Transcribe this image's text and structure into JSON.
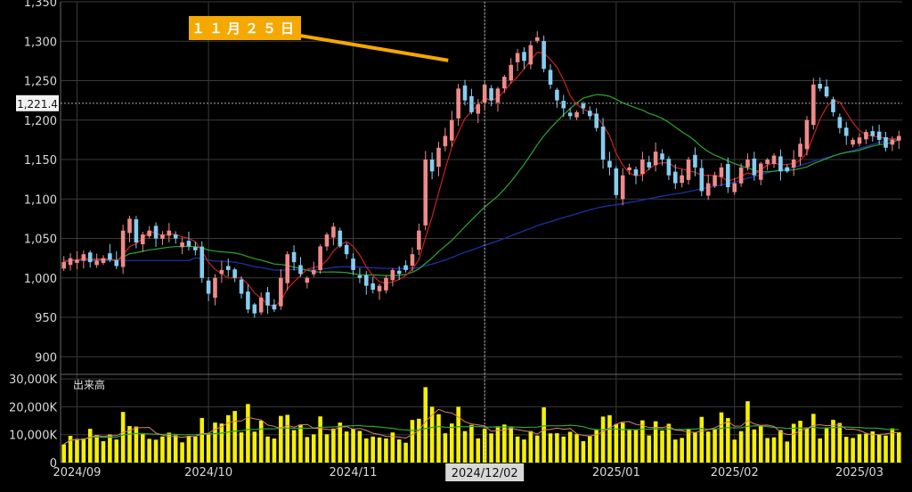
{
  "chart_data": {
    "type": "candlestick",
    "price_axis": {
      "ylim": [
        880,
        1350
      ],
      "ticks": [
        900,
        950,
        1000,
        1050,
        1100,
        1150,
        1200,
        1250,
        1300,
        1350
      ],
      "tick_labels": [
        "900",
        "950",
        "1,000",
        "1,050",
        "1,100",
        "1,150",
        "1,200",
        "1,250",
        "1,300",
        "1,350"
      ]
    },
    "volume_axis": {
      "ylim": [
        0,
        31000
      ],
      "ticks": [
        0,
        10000,
        20000,
        30000
      ],
      "tick_labels": [
        "0",
        "10,000K",
        "20,000K",
        "30,000K"
      ],
      "title": "出来高"
    },
    "x_labels": [
      {
        "index": 2,
        "label": "2024/09"
      },
      {
        "index": 22,
        "label": "2024/10"
      },
      {
        "index": 44,
        "label": "2024/11"
      },
      {
        "index": 64,
        "label": "2024/12"
      },
      {
        "index": 84,
        "label": "2025/01"
      },
      {
        "index": 102,
        "label": "2025/02"
      },
      {
        "index": 121,
        "label": "2025/03"
      }
    ],
    "cursor": {
      "index": 64,
      "date_label": "2024/12/02",
      "price_label": "1,221.4",
      "price": 1221.4
    },
    "annotation": {
      "text": "１１月２５日",
      "target_index": 59,
      "target_price": 1278
    },
    "colors": {
      "up": "#f08a8a",
      "down": "#87cdf0",
      "volume": "#f4f000",
      "ma_short": "#cc2020",
      "ma_mid": "#2ea52e",
      "ma_long": "#1c2e9a",
      "grid": "#3a3a3a",
      "callout": "#f5a800"
    },
    "close": [
      1020,
      1025,
      1023,
      1030,
      1020,
      1022,
      1025,
      1023,
      1015,
      1060,
      1075,
      1045,
      1055,
      1060,
      1050,
      1055,
      1060,
      1050,
      1045,
      1040,
      1035,
      1000,
      980,
      1000,
      1010,
      1010,
      1000,
      980,
      960,
      955,
      975,
      965,
      960,
      1000,
      1030,
      1020,
      1005,
      1000,
      1010,
      1040,
      1055,
      1065,
      1040,
      1030,
      1010,
      1000,
      990,
      985,
      990,
      1000,
      1010,
      1005,
      1010,
      1030,
      1060,
      1150,
      1135,
      1165,
      1180,
      1200,
      1240,
      1225,
      1210,
      1220,
      1245,
      1225,
      1240,
      1255,
      1270,
      1285,
      1275,
      1295,
      1305,
      1265,
      1245,
      1225,
      1215,
      1205,
      1210,
      1215,
      1205,
      1190,
      1150,
      1140,
      1105,
      1130,
      1140,
      1130,
      1150,
      1140,
      1160,
      1150,
      1130,
      1120,
      1130,
      1150,
      1140,
      1110,
      1120,
      1130,
      1140,
      1115,
      1120,
      1140,
      1150,
      1130,
      1145,
      1150,
      1155,
      1135,
      1135,
      1150,
      1170,
      1200,
      1245,
      1240,
      1230,
      1210,
      1190,
      1180,
      1175,
      1178,
      1185,
      1180,
      1175,
      1165,
      1175,
      1180
    ]
  }
}
